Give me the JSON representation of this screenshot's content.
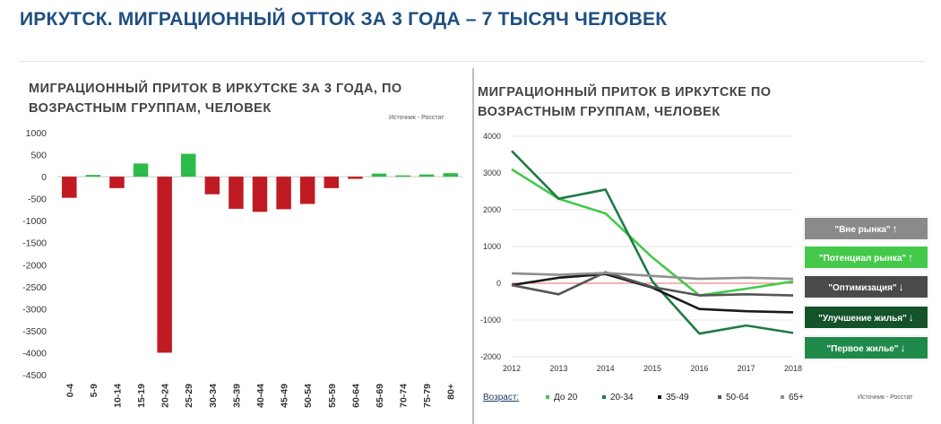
{
  "page": {
    "title": "ИРКУТСК. МИГРАЦИОННЫЙ ОТТОК ЗА 3 ГОДА – 7 ТЫСЯЧ ЧЕЛОВЕК"
  },
  "left_chart": {
    "title_line1": "МИГРАЦИОННЫЙ ПРИТОК В ИРКУТСКЕ ЗА 3 ГОДА, ПО",
    "title_line2": "ВОЗРАСТНЫМ ГРУППАМ, ЧЕЛОВЕК",
    "source": "Источник - Росстат"
  },
  "right_chart": {
    "title_line1": "МИГРАЦИОННЫЙ ПРИТОК В ИРКУТСКЕ ПО",
    "title_line2": "ВОЗРАСТНЫМ ГРУППАМ, ЧЕЛОВЕК",
    "source": "Источник - Росстат",
    "legend_prefix": "Возраст:",
    "legend_buttons": [
      {
        "label": "\"Вне рынка\"",
        "arrow": "↑",
        "color": "#8a8a8a"
      },
      {
        "label": "\"Потенциал рынка\"",
        "arrow": "↑",
        "color": "#44c94a"
      },
      {
        "label": "\"Оптимизация\"",
        "arrow": "↓",
        "color": "#4a4a4a"
      },
      {
        "label": "\"Улучшение жилья\"",
        "arrow": "↓",
        "color": "#14532a"
      },
      {
        "label": "\"Первое жилье\"",
        "arrow": "↓",
        "color": "#1f8a4a"
      }
    ]
  },
  "colors": {
    "title": "#1e4f80",
    "positive_bar": "#2dbb4a",
    "negative_bar": "#c01b22",
    "zero_line_right": "#d93a3a"
  },
  "chart_data": [
    {
      "type": "bar",
      "categories": [
        "0-4",
        "5-9",
        "10-14",
        "15-19",
        "20-24",
        "25-29",
        "30-34",
        "35-39",
        "40-44",
        "45-49",
        "50-54",
        "55-59",
        "60-64",
        "65-69",
        "70-74",
        "75-79",
        "80+"
      ],
      "values": [
        -480,
        40,
        -260,
        300,
        -4000,
        520,
        -400,
        -730,
        -800,
        -740,
        -620,
        -260,
        -50,
        70,
        30,
        50,
        80
      ],
      "ylim": [
        -4500,
        1000
      ],
      "yticks": [
        1000,
        500,
        0,
        -500,
        -1000,
        -1500,
        -2000,
        -2500,
        -3000,
        -3500,
        -4000,
        -4500
      ],
      "grid": false
    },
    {
      "type": "line",
      "x": [
        2012,
        2013,
        2014,
        2015,
        2016,
        2017,
        2018
      ],
      "xticks": [
        "2012",
        "2013",
        "2014",
        "2015",
        "2016",
        "2017",
        "2018"
      ],
      "yticks": [
        4000,
        3000,
        2000,
        1000,
        0,
        -1000,
        -2000
      ],
      "ylim": [
        -2000,
        4000
      ],
      "grid": true,
      "series": [
        {
          "name": "До 20",
          "color": "#44c94a",
          "values": [
            3100,
            2300,
            1900,
            700,
            -330,
            -150,
            50
          ]
        },
        {
          "name": "20-34",
          "color": "#1f7a45",
          "values": [
            3600,
            2300,
            2550,
            50,
            -1370,
            -1150,
            -1350
          ]
        },
        {
          "name": "35-49",
          "color": "#1a1a1a",
          "values": [
            -50,
            150,
            250,
            -120,
            -700,
            -760,
            -790
          ]
        },
        {
          "name": "50-64",
          "color": "#555555",
          "values": [
            -50,
            -300,
            300,
            -100,
            -330,
            -300,
            -330
          ]
        },
        {
          "name": "65+",
          "color": "#8f8f8f",
          "values": [
            270,
            230,
            280,
            200,
            120,
            150,
            120
          ]
        }
      ]
    }
  ]
}
